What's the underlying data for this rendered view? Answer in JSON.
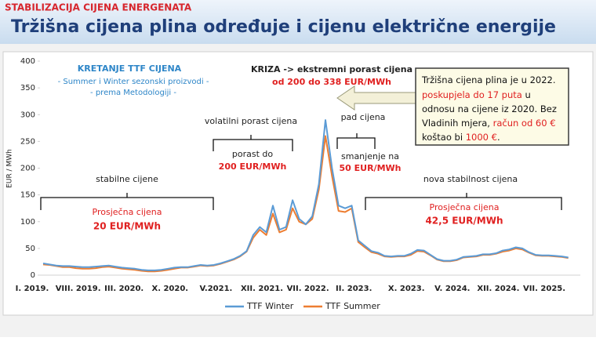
{
  "header": {
    "kicker": "STABILIZACIJA CIJENA ENERGENATA",
    "title": "Tržišna cijena plina određuje i cijenu električne energije"
  },
  "chart_data": {
    "type": "line",
    "y_label": "EUR / MWh",
    "categories": [
      "I. 2019.",
      null,
      null,
      null,
      null,
      null,
      null,
      "VIII. 2019.",
      null,
      null,
      null,
      null,
      null,
      null,
      "III. 2020.",
      null,
      null,
      null,
      null,
      null,
      null,
      "X. 2020.",
      null,
      null,
      null,
      null,
      null,
      null,
      "V.2021.",
      null,
      null,
      null,
      null,
      null,
      null,
      "XII. 2021.",
      null,
      null,
      null,
      null,
      null,
      null,
      "VII. 2022.",
      null,
      null,
      null,
      null,
      null,
      null,
      "II. 2023.",
      null,
      null,
      null,
      null,
      null,
      null,
      null,
      "X. 2023.",
      null,
      null,
      null,
      null,
      null,
      null,
      "V. 2024.",
      null,
      null,
      null,
      null,
      null,
      null,
      "XII. 2024.",
      null,
      null,
      null,
      null,
      null,
      null,
      "VII. 2025.",
      null,
      null
    ],
    "series": [
      {
        "name": "TTF Winter",
        "color": "#5b9bd5",
        "values": [
          22,
          20,
          18,
          17,
          17,
          16,
          15,
          15,
          16,
          17,
          18,
          16,
          14,
          13,
          12,
          10,
          9,
          9,
          10,
          12,
          14,
          15,
          15,
          17,
          19,
          18,
          19,
          22,
          26,
          30,
          36,
          45,
          75,
          90,
          80,
          130,
          85,
          90,
          140,
          105,
          95,
          110,
          170,
          290,
          200,
          130,
          125,
          130,
          65,
          55,
          45,
          42,
          36,
          35,
          36,
          36,
          40,
          47,
          46,
          38,
          30,
          27,
          27,
          29,
          34,
          35,
          36,
          39,
          39,
          41,
          46,
          48,
          52,
          50,
          43,
          38,
          37,
          37,
          36,
          35,
          33
        ]
      },
      {
        "name": "TTF Summer",
        "color": "#ed7d31",
        "values": [
          20,
          19,
          17,
          15,
          15,
          13,
          12,
          12,
          13,
          15,
          16,
          14,
          12,
          11,
          10,
          8,
          7,
          7,
          8,
          10,
          12,
          14,
          14,
          16,
          18,
          17,
          18,
          21,
          25,
          29,
          35,
          44,
          70,
          85,
          75,
          115,
          80,
          85,
          125,
          100,
          95,
          105,
          160,
          260,
          185,
          120,
          118,
          125,
          62,
          52,
          43,
          40,
          35,
          34,
          35,
          35,
          38,
          45,
          44,
          37,
          29,
          26,
          26,
          28,
          33,
          34,
          35,
          38,
          38,
          40,
          44,
          46,
          50,
          48,
          42,
          37,
          36,
          36,
          35,
          34,
          32
        ]
      }
    ],
    "ylim": [
      0,
      400
    ],
    "yticks": [
      0,
      50,
      100,
      150,
      200,
      250,
      300,
      350,
      400
    ],
    "grid": false,
    "legend": "bottom",
    "annotations": {
      "method_title": "KRETANJE TTF CIJENA",
      "method_line1": "- Summer i Winter sezonski proizvodi -",
      "method_line2": "- prema Metodologiji -",
      "crisis_title": "KRIZA -> ekstremni porast cijena",
      "crisis_range": "od 200 do 338 EUR/MWh",
      "volatile_title": "volatilni porast cijena",
      "volatile_line1": "porast do",
      "volatile_line2": "200 EUR/MWh",
      "drop_title": "pad cijena",
      "drop_line1": "smanjenje na",
      "drop_line2": "50 EUR/MWh",
      "stable_title": "stabilne cijene",
      "stable_line1": "Prosječna cijena",
      "stable_line2": "20 EUR/MWh",
      "new_title": "nova stabilnost cijena",
      "new_line1": "Prosječna cijena",
      "new_line2": "42,5 EUR/MWh",
      "box": [
        [
          "Tržišna cijena plina je u 2022."
        ],
        [
          "poskupjela do 17 puta",
          " u"
        ],
        [
          "odnosu na cijene iz 2020. Bez"
        ],
        [
          "Vladinih mjera, ",
          "račun od 60 €"
        ],
        [
          "koštao bi ",
          "1000 €",
          "."
        ]
      ]
    }
  }
}
